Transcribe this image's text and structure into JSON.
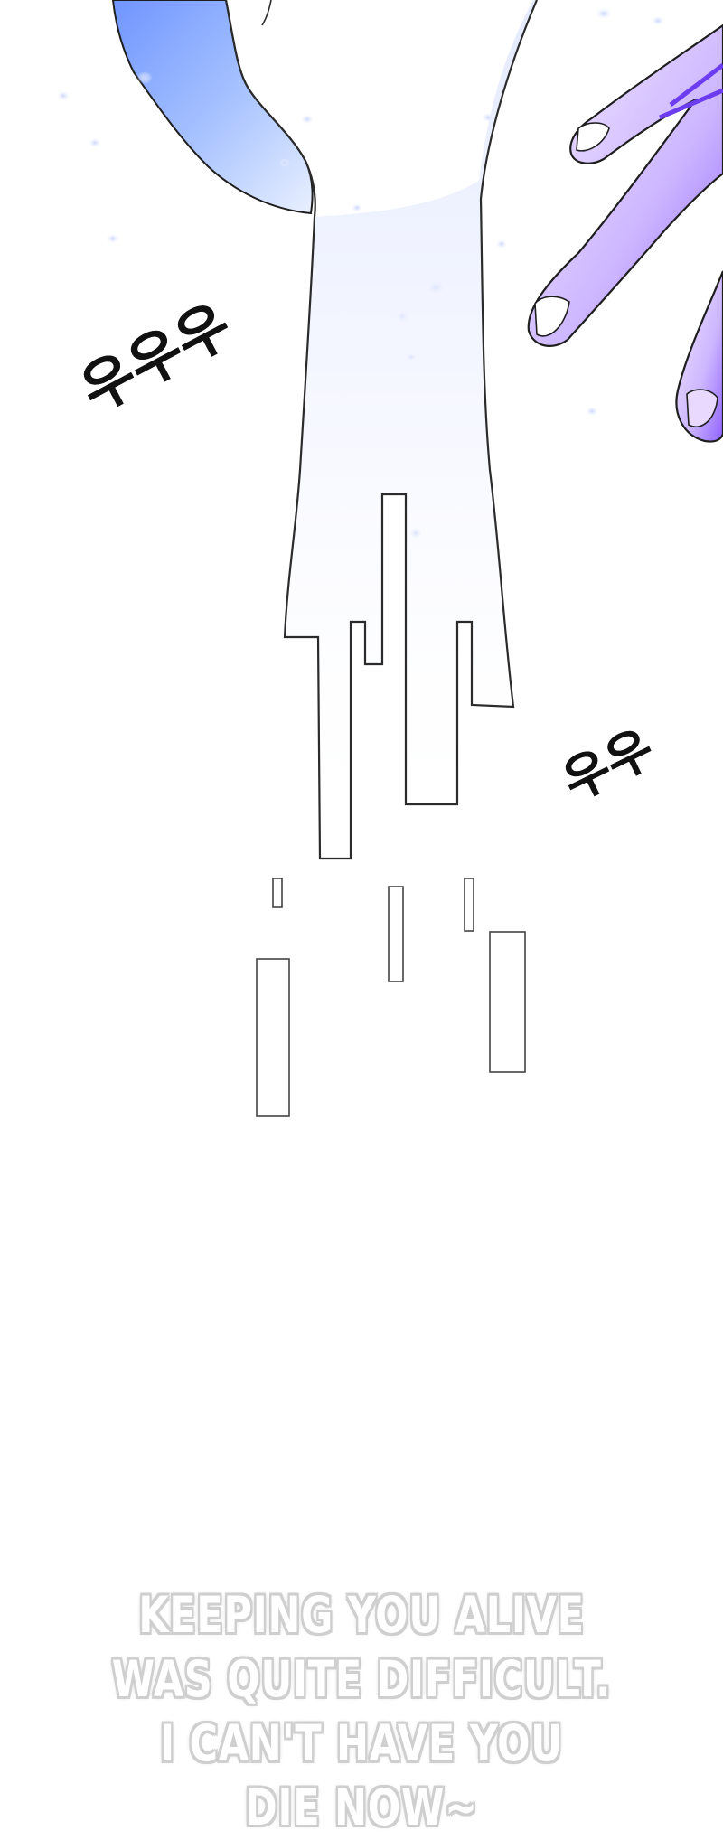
{
  "sfx": {
    "left": "우우우",
    "right": "우우"
  },
  "dialogue": {
    "lines": [
      "KEEPING YOU ALIVE",
      "WAS QUITE DIFFICULT.",
      "I CAN'T HAVE YOU",
      "DIE NOW~"
    ]
  },
  "colors": {
    "background": "#ffffff",
    "glow_blue": "#7fa6ff",
    "glow_purple": "#b58cff",
    "line": "#2b2b2b",
    "dialogue_fill": "#ffffff",
    "dialogue_outline": "#cfcfcf"
  }
}
